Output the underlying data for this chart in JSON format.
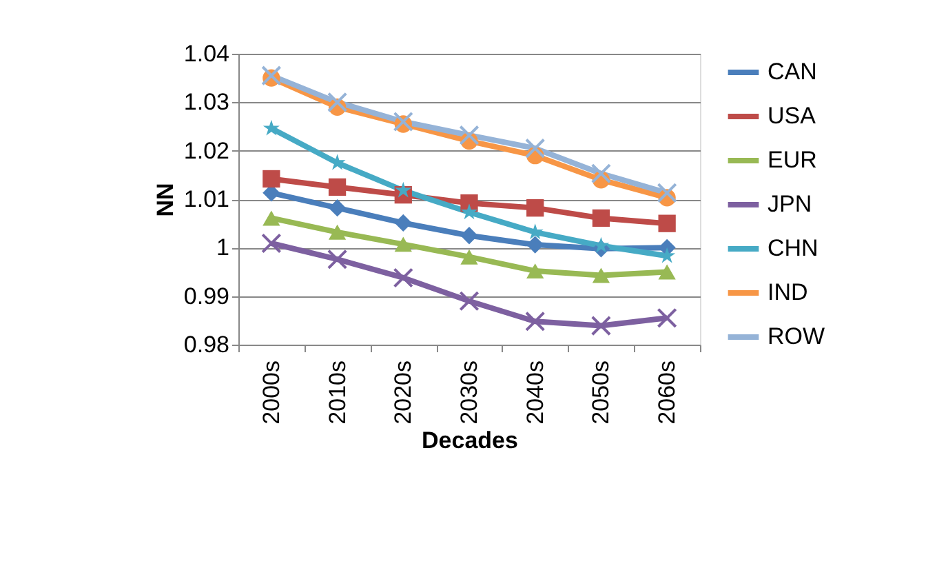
{
  "chart_data": {
    "type": "line",
    "xlabel": "Decades",
    "ylabel": "NN",
    "categories": [
      "2000s",
      "2010s",
      "2020s",
      "2030s",
      "2040s",
      "2050s",
      "2060s"
    ],
    "series": [
      {
        "name": "CAN",
        "color": "#4a7ebb",
        "marker": "diamond",
        "values": [
          1.0113,
          1.0082,
          1.0051,
          1.0025,
          1.0006,
          0.9998,
          1.0
        ]
      },
      {
        "name": "USA",
        "color": "#be4b48",
        "marker": "square",
        "values": [
          1.0142,
          1.0125,
          1.0109,
          1.0092,
          1.0082,
          1.0061,
          1.005
        ]
      },
      {
        "name": "EUR",
        "color": "#98b954",
        "marker": "triangle",
        "values": [
          1.0061,
          1.0032,
          1.0007,
          0.9981,
          0.9952,
          0.9943,
          0.995
        ]
      },
      {
        "name": "JPN",
        "color": "#7d60a0",
        "marker": "cross",
        "values": [
          1.0009,
          0.9976,
          0.9938,
          0.989,
          0.9848,
          0.9839,
          0.9855
        ]
      },
      {
        "name": "CHN",
        "color": "#46aac5",
        "marker": "star",
        "values": [
          1.0246,
          1.0175,
          1.0118,
          1.0073,
          1.0032,
          1.0004,
          0.9983
        ]
      },
      {
        "name": "IND",
        "color": "#f79646",
        "marker": "circle",
        "values": [
          1.035,
          1.029,
          1.0255,
          1.022,
          1.019,
          1.014,
          1.0103
        ]
      },
      {
        "name": "ROW",
        "color": "#95b3d7",
        "marker": "cross",
        "values": [
          1.0355,
          1.03,
          1.026,
          1.0232,
          1.0205,
          1.0153,
          1.0113
        ]
      }
    ],
    "ylim": [
      0.98,
      1.04
    ],
    "yticks": [
      0.98,
      0.99,
      1,
      1.01,
      1.02,
      1.03,
      1.04
    ],
    "grid": "y",
    "legend": "right",
    "line_style": "solid"
  }
}
